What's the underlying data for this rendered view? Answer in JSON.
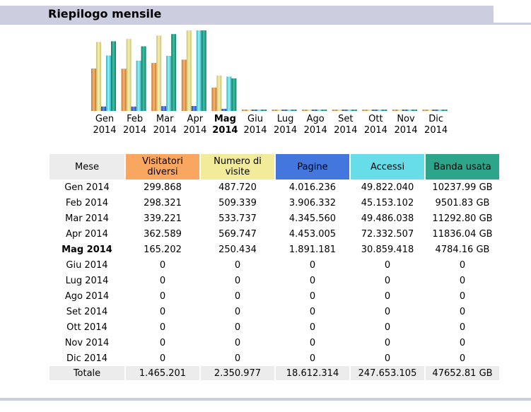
{
  "title": "Riepilogo mensile",
  "current_month_index": 4,
  "colors": {
    "visitatori": "#f9a661",
    "numero_visite": "#f2ec9a",
    "pagine": "#4477dd",
    "accessi": "#66dde8",
    "banda": "#2da58a",
    "header_gray": "#ececec",
    "bar_lavender": "#cccdde"
  },
  "table": {
    "headers": {
      "mese": "Mese",
      "visitatori": "Visitatori diversi",
      "visite": "Numero di visite",
      "pagine": "Pagine",
      "accessi": "Accessi",
      "banda": "Banda usata"
    },
    "rows": [
      {
        "mese": "Gen 2014",
        "visitatori": "299.868",
        "visite": "487.720",
        "pagine": "4.016.236",
        "accessi": "49.822.040",
        "banda": "10237.99 GB"
      },
      {
        "mese": "Feb 2014",
        "visitatori": "298.321",
        "visite": "509.339",
        "pagine": "3.906.332",
        "accessi": "45.153.102",
        "banda": "9501.83 GB"
      },
      {
        "mese": "Mar 2014",
        "visitatori": "339.221",
        "visite": "533.737",
        "pagine": "4.345.560",
        "accessi": "49.486.038",
        "banda": "11292.80 GB"
      },
      {
        "mese": "Apr 2014",
        "visitatori": "362.589",
        "visite": "569.747",
        "pagine": "4.453.005",
        "accessi": "72.332.507",
        "banda": "11836.04 GB"
      },
      {
        "mese": "Mag 2014",
        "visitatori": "165.202",
        "visite": "250.434",
        "pagine": "1.891.181",
        "accessi": "30.859.418",
        "banda": "4784.16 GB"
      },
      {
        "mese": "Giu 2014",
        "visitatori": "0",
        "visite": "0",
        "pagine": "0",
        "accessi": "0",
        "banda": "0"
      },
      {
        "mese": "Lug 2014",
        "visitatori": "0",
        "visite": "0",
        "pagine": "0",
        "accessi": "0",
        "banda": "0"
      },
      {
        "mese": "Ago 2014",
        "visitatori": "0",
        "visite": "0",
        "pagine": "0",
        "accessi": "0",
        "banda": "0"
      },
      {
        "mese": "Set 2014",
        "visitatori": "0",
        "visite": "0",
        "pagine": "0",
        "accessi": "0",
        "banda": "0"
      },
      {
        "mese": "Ott 2014",
        "visitatori": "0",
        "visite": "0",
        "pagine": "0",
        "accessi": "0",
        "banda": "0"
      },
      {
        "mese": "Nov 2014",
        "visitatori": "0",
        "visite": "0",
        "pagine": "0",
        "accessi": "0",
        "banda": "0"
      },
      {
        "mese": "Dic 2014",
        "visitatori": "0",
        "visite": "0",
        "pagine": "0",
        "accessi": "0",
        "banda": "0"
      }
    ],
    "total": {
      "mese": "Totale",
      "visitatori": "1.465.201",
      "visite": "2.350.977",
      "pagine": "18.612.314",
      "accessi": "247.653.105",
      "banda": "47652.81 GB"
    }
  },
  "chart_data": {
    "type": "bar",
    "categories": [
      [
        "Gen",
        "2014"
      ],
      [
        "Feb",
        "2014"
      ],
      [
        "Mar",
        "2014"
      ],
      [
        "Apr",
        "2014"
      ],
      [
        "Mag",
        "2014"
      ],
      [
        "Giu",
        "2014"
      ],
      [
        "Lug",
        "2014"
      ],
      [
        "Ago",
        "2014"
      ],
      [
        "Set",
        "2014"
      ],
      [
        "Ott",
        "2014"
      ],
      [
        "Nov",
        "2014"
      ],
      [
        "Dic",
        "2014"
      ]
    ],
    "series": [
      {
        "key": "visitatori",
        "values": [
          299868,
          298321,
          339221,
          362589,
          165202,
          0,
          0,
          0,
          0,
          0,
          0,
          0
        ]
      },
      {
        "key": "visite",
        "values": [
          487720,
          509339,
          533737,
          569747,
          250434,
          0,
          0,
          0,
          0,
          0,
          0,
          0
        ]
      },
      {
        "key": "pagine",
        "values": [
          4016236,
          3906332,
          4345560,
          4453005,
          1891181,
          0,
          0,
          0,
          0,
          0,
          0,
          0
        ]
      },
      {
        "key": "accessi",
        "values": [
          49822040,
          45153102,
          49486038,
          72332507,
          30859418,
          0,
          0,
          0,
          0,
          0,
          0,
          0
        ]
      },
      {
        "key": "banda",
        "values": [
          10237.99,
          9501.83,
          11292.8,
          11836.04,
          4784.16,
          0,
          0,
          0,
          0,
          0,
          0,
          0
        ]
      }
    ],
    "scale_groups": [
      [
        "visitatori",
        "visite"
      ],
      [
        "pagine",
        "accessi"
      ],
      [
        "banda"
      ]
    ]
  }
}
